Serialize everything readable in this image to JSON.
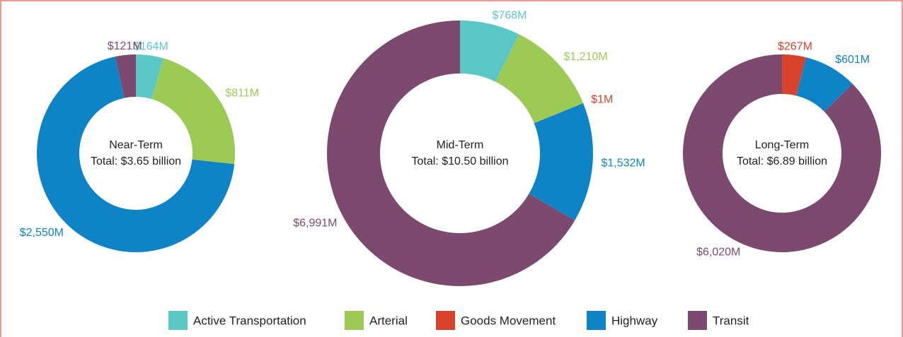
{
  "chart_data": [
    {
      "type": "pie",
      "title": "Near-Term",
      "subtitle": "Total: $3.65 billion",
      "categories": [
        "Active Transportation",
        "Arterial",
        "Highway",
        "Transit"
      ],
      "values": [
        164,
        811,
        2550,
        121
      ],
      "value_labels": [
        "$164M",
        "$811M",
        "$2,550M",
        "$121M"
      ],
      "colors": [
        "#5cc8c6",
        "#9ccb55",
        "#0e84c7",
        "#7b4a6e"
      ]
    },
    {
      "type": "pie",
      "title": "Mid-Term",
      "subtitle": "Total: $10.50 billion",
      "categories": [
        "Active Transportation",
        "Arterial",
        "Goods Movement",
        "Highway",
        "Transit"
      ],
      "values": [
        768,
        1210,
        1,
        1532,
        6991
      ],
      "value_labels": [
        "$768M",
        "$1,210M",
        "$1M",
        "$1,532M",
        "$6,991M"
      ],
      "colors": [
        "#5cc8c6",
        "#9ccb55",
        "#d8412b",
        "#0e84c7",
        "#7b4a6e"
      ]
    },
    {
      "type": "pie",
      "title": "Long-Term",
      "subtitle": "Total: $6.89 billion",
      "categories": [
        "Goods Movement",
        "Highway",
        "Transit"
      ],
      "values": [
        267,
        601,
        6020
      ],
      "value_labels": [
        "$267M",
        "$601M",
        "$6,020M"
      ],
      "colors": [
        "#d8412b",
        "#0e84c7",
        "#7b4a6e"
      ]
    }
  ],
  "legend": [
    {
      "name": "Active Transportation",
      "color": "#5cc8c6"
    },
    {
      "name": "Arterial",
      "color": "#9ccb55"
    },
    {
      "name": "Goods Movement",
      "color": "#d8412b"
    },
    {
      "name": "Highway",
      "color": "#0e84c7"
    },
    {
      "name": "Transit",
      "color": "#7b4a6e"
    }
  ]
}
